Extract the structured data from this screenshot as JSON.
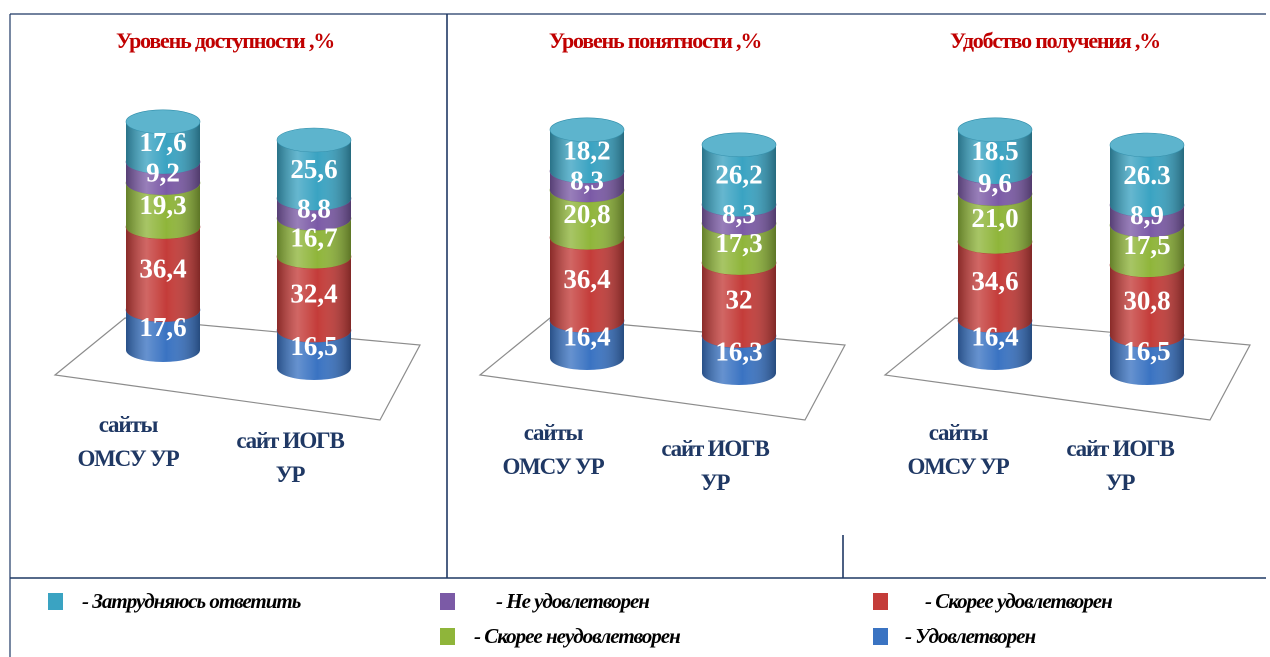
{
  "colors": {
    "dont_know": "#3aa3c2",
    "not_satisfied": "#7b5aa6",
    "rather_not_satisfied": "#8fb53a",
    "rather_satisfied": "#c43c39",
    "satisfied": "#3a73c2",
    "title": "#c00000",
    "category": "#1f3864",
    "frame": "#1f3864"
  },
  "series": [
    {
      "key": "satisfied",
      "name": "Удовлетворен",
      "legend_label": "- Удовлетворен"
    },
    {
      "key": "rather_satisfied",
      "name": "Скорее удовлетворен",
      "legend_label": "- Скорее удовлетворен"
    },
    {
      "key": "rather_not_satisfied",
      "name": "Скорее неудовлетворен",
      "legend_label": "-  Скорее неудовлетворен"
    },
    {
      "key": "not_satisfied",
      "name": "Не удовлетворен",
      "legend_label": "- Не удовлетворен"
    },
    {
      "key": "dont_know",
      "name": "Затрудняюсь ответить",
      "legend_label": "- Затрудняюсь ответить"
    }
  ],
  "categories": [
    [
      "сайты",
      "ОМСУ УР"
    ],
    [
      "сайт ИОГВ",
      "УР"
    ]
  ],
  "chart_data": [
    {
      "type": "bar",
      "stacked": true,
      "title": "Уровень доступности ,%",
      "categories": [
        "сайты ОМСУ УР",
        "сайт ИОГВ УР"
      ],
      "series": [
        {
          "name": "Удовлетворен",
          "values": [
            17.6,
            16.5
          ],
          "labels": [
            "17,6",
            "16,5"
          ]
        },
        {
          "name": "Скорее удовлетворен",
          "values": [
            36.4,
            32.4
          ],
          "labels": [
            "36,4",
            "32,4"
          ]
        },
        {
          "name": "Скорее неудовлетворен",
          "values": [
            19.3,
            16.7
          ],
          "labels": [
            "19,3",
            "16,7"
          ]
        },
        {
          "name": "Не удовлетворен",
          "values": [
            9.2,
            8.8
          ],
          "labels": [
            "9,2",
            "8,8"
          ]
        },
        {
          "name": "Затрудняюсь ответить",
          "values": [
            17.6,
            25.6
          ],
          "labels": [
            "17,6",
            "25,6"
          ]
        }
      ]
    },
    {
      "type": "bar",
      "stacked": true,
      "title": "Уровень понятности ,%",
      "categories": [
        "сайты ОМСУ УР",
        "сайт ИОГВ УР"
      ],
      "series": [
        {
          "name": "Удовлетворен",
          "values": [
            16.4,
            16.3
          ],
          "labels": [
            "16,4",
            "16,3"
          ]
        },
        {
          "name": "Скорее удовлетворен",
          "values": [
            36.4,
            32
          ],
          "labels": [
            "36,4",
            "32"
          ]
        },
        {
          "name": "Скорее неудовлетворен",
          "values": [
            20.8,
            17.3
          ],
          "labels": [
            "20,8",
            "17,3"
          ]
        },
        {
          "name": "Не удовлетворен",
          "values": [
            8.3,
            8.3
          ],
          "labels": [
            "8,3",
            "8,3"
          ]
        },
        {
          "name": "Затрудняюсь ответить",
          "values": [
            18.2,
            26.2
          ],
          "labels": [
            "18,2",
            "26,2"
          ]
        }
      ]
    },
    {
      "type": "bar",
      "stacked": true,
      "title": "Удобство получения ,%",
      "categories": [
        "сайты ОМСУ УР",
        "сайт ИОГВ УР"
      ],
      "series": [
        {
          "name": "Удовлетворен",
          "values": [
            16.4,
            16.5
          ],
          "labels": [
            "16,4",
            "16,5"
          ]
        },
        {
          "name": "Скорее удовлетворен",
          "values": [
            34.6,
            30.8
          ],
          "labels": [
            "34,6",
            "30,8"
          ]
        },
        {
          "name": "Скорее неудовлетворен",
          "values": [
            21.0,
            17.5
          ],
          "labels": [
            "21,0",
            "17,5"
          ]
        },
        {
          "name": "Не удовлетворен",
          "values": [
            9.6,
            8.9
          ],
          "labels": [
            "9,6",
            "8,9"
          ]
        },
        {
          "name": "Затрудняюсь ответить",
          "values": [
            18.5,
            26.3
          ],
          "labels": [
            "18.5",
            "26.3"
          ]
        }
      ]
    }
  ]
}
